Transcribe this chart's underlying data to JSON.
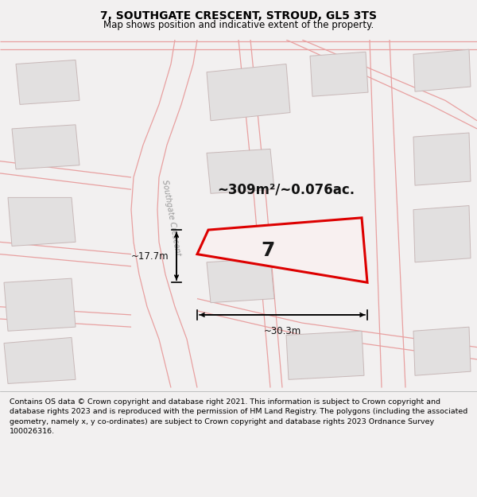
{
  "title_line1": "7, SOUTHGATE CRESCENT, STROUD, GL5 3TS",
  "title_line2": "Map shows position and indicative extent of the property.",
  "footer_text": "Contains OS data © Crown copyright and database right 2021. This information is subject to Crown copyright and database rights 2023 and is reproduced with the permission of HM Land Registry. The polygons (including the associated geometry, namely x, y co-ordinates) are subject to Crown copyright and database rights 2023 Ordnance Survey 100026316.",
  "area_label": "~309m²/~0.076ac.",
  "number_label": "7",
  "width_label": "~30.3m",
  "height_label": "~17.7m",
  "road_label": "Southgate Crescent",
  "bg_color": "#f2f0f0",
  "map_bg": "#f2f0f0",
  "building_fill": "#e2e0e0",
  "building_edge": "#c8b8b8",
  "road_line": "#e8a0a0",
  "highlight_fill": "#f8f0f0",
  "highlight_edge": "#dd0000",
  "footer_bg": "#f2f0f0",
  "title_fs": 10,
  "subtitle_fs": 8.5,
  "footer_fs": 6.8,
  "area_fs": 12,
  "num_fs": 18,
  "dim_fs": 8.5,
  "road_label_fs": 7
}
